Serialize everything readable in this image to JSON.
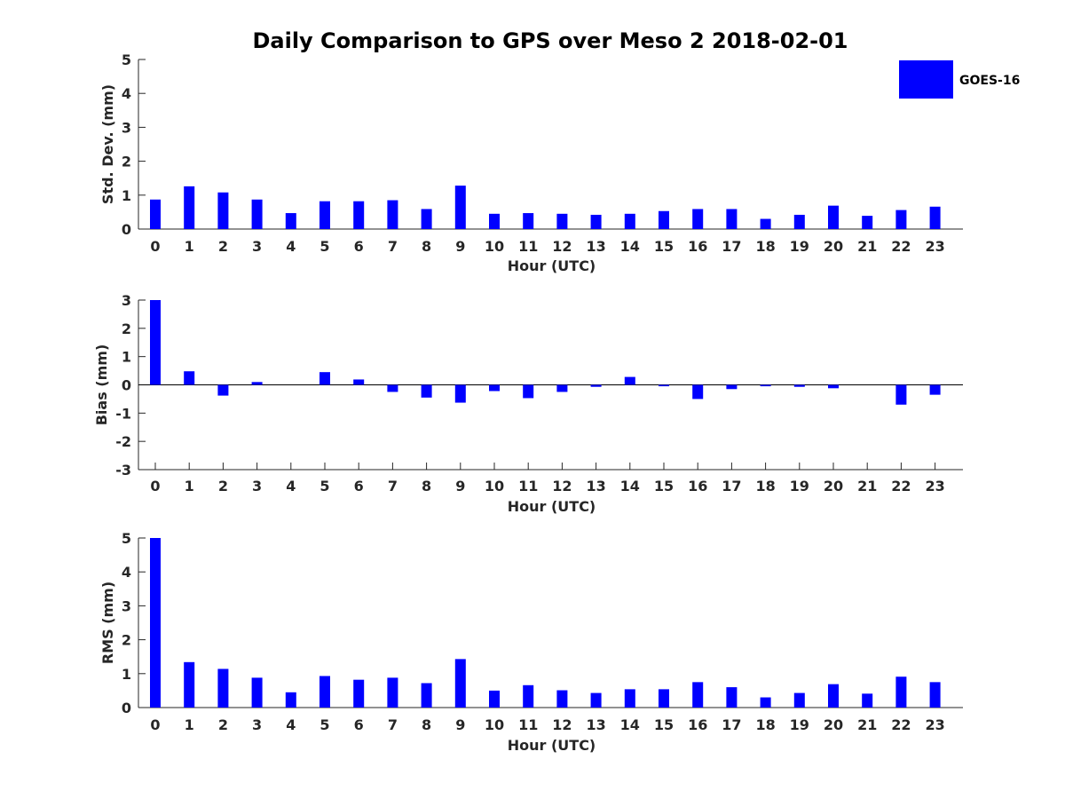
{
  "title": "Daily Comparison to GPS over Meso 2 2018-02-01",
  "legend": {
    "label": "GOES-16",
    "color": "#0000ff",
    "placement": "top-right"
  },
  "chart_data": [
    {
      "type": "bar",
      "xlabel": "Hour (UTC)",
      "ylabel": "Std. Dev. (mm)",
      "ylim": [
        0,
        5
      ],
      "yticks": [
        "0",
        "1",
        "2",
        "3",
        "4",
        "5"
      ],
      "categories": [
        "0",
        "1",
        "2",
        "3",
        "4",
        "5",
        "6",
        "7",
        "8",
        "9",
        "10",
        "11",
        "12",
        "13",
        "14",
        "15",
        "16",
        "17",
        "18",
        "19",
        "20",
        "21",
        "22",
        "23"
      ],
      "series": [
        {
          "name": "GOES-16",
          "values": [
            0.87,
            1.26,
            1.08,
            0.87,
            0.47,
            0.82,
            0.82,
            0.85,
            0.59,
            1.28,
            0.45,
            0.47,
            0.45,
            0.42,
            0.45,
            0.53,
            0.59,
            0.59,
            0.3,
            0.42,
            0.69,
            0.39,
            0.56,
            0.66
          ]
        }
      ]
    },
    {
      "type": "bar",
      "xlabel": "Hour (UTC)",
      "ylabel": "Bias (mm)",
      "ylim": [
        -3,
        3
      ],
      "yticks": [
        "-3",
        "-2",
        "-1",
        "0",
        "1",
        "2",
        "3"
      ],
      "categories": [
        "0",
        "1",
        "2",
        "3",
        "4",
        "5",
        "6",
        "7",
        "8",
        "9",
        "10",
        "11",
        "12",
        "13",
        "14",
        "15",
        "16",
        "17",
        "18",
        "19",
        "20",
        "21",
        "22",
        "23"
      ],
      "series": [
        {
          "name": "GOES-16",
          "values": [
            3.0,
            0.48,
            -0.38,
            0.1,
            0.0,
            0.45,
            0.19,
            -0.25,
            -0.45,
            -0.63,
            -0.22,
            -0.47,
            -0.25,
            -0.07,
            0.28,
            -0.05,
            -0.5,
            -0.15,
            -0.05,
            -0.07,
            -0.12,
            0.0,
            -0.7,
            -0.35
          ]
        }
      ]
    },
    {
      "type": "bar",
      "xlabel": "Hour (UTC)",
      "ylabel": "RMS (mm)",
      "ylim": [
        0,
        5
      ],
      "yticks": [
        "0",
        "1",
        "2",
        "3",
        "4",
        "5"
      ],
      "categories": [
        "0",
        "1",
        "2",
        "3",
        "4",
        "5",
        "6",
        "7",
        "8",
        "9",
        "10",
        "11",
        "12",
        "13",
        "14",
        "15",
        "16",
        "17",
        "18",
        "19",
        "20",
        "21",
        "22",
        "23"
      ],
      "series": [
        {
          "name": "GOES-16",
          "values": [
            5.0,
            1.34,
            1.14,
            0.88,
            0.45,
            0.93,
            0.82,
            0.88,
            0.72,
            1.43,
            0.5,
            0.66,
            0.51,
            0.43,
            0.54,
            0.54,
            0.75,
            0.6,
            0.3,
            0.43,
            0.69,
            0.41,
            0.91,
            0.75
          ]
        }
      ]
    }
  ]
}
